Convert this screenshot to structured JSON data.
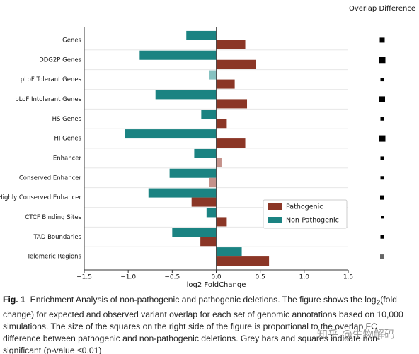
{
  "chart_data": {
    "type": "bar",
    "orientation": "horizontal",
    "x_label": "log2 FoldChange",
    "categories": [
      "Genes",
      "DDG2P Genes",
      "pLoF Tolerant Genes",
      "pLoF Intolerant Genes",
      "HS Genes",
      "HI Genes",
      "Enhancer",
      "Conserved Enhancer",
      "Highly Conserved Enhancer",
      "CTCF Binding Sites",
      "TAD Boundaries",
      "Telomeric Regions"
    ],
    "series": [
      {
        "name": "Non-Pathogenic",
        "color": "#1b8382",
        "values": [
          -0.34,
          -0.87,
          -0.08,
          -0.69,
          -0.17,
          -1.04,
          -0.25,
          -0.53,
          -0.77,
          -0.11,
          -0.5,
          0.29
        ],
        "point_colors": [
          "#1b8382",
          "#1b8382",
          "#86c2c1",
          "#1b8382",
          "#1b8382",
          "#1b8382",
          "#1b8382",
          "#1b8382",
          "#1b8382",
          "#1b8382",
          "#1b8382",
          "#1b8382"
        ]
      },
      {
        "name": "Pathogenic",
        "color": "#8b3626",
        "values": [
          0.33,
          0.45,
          0.21,
          0.35,
          0.12,
          0.33,
          0.06,
          -0.08,
          -0.28,
          0.12,
          -0.18,
          0.6
        ],
        "point_colors": [
          "#8b3626",
          "#8b3626",
          "#8b3626",
          "#8b3626",
          "#8b3626",
          "#8b3626",
          "#c4918a",
          "#c4918a",
          "#8b3626",
          "#8b3626",
          "#8b3626",
          "#8b3626"
        ]
      }
    ],
    "xlim": [
      -1.5,
      1.5
    ],
    "xticks": [
      {
        "value": -1.5,
        "label": "−1.5"
      },
      {
        "value": -1,
        "label": "−1.0"
      },
      {
        "value": -0.5,
        "label": "−0.5"
      },
      {
        "value": 0,
        "label": "0.0"
      },
      0.5,
      {
        "value": 1,
        "label": "1.0"
      },
      1.5
    ],
    "legend_order": [
      1,
      0
    ],
    "overlap_difference": {
      "title": "Overlap Difference",
      "values": [
        7,
        9,
        5,
        8,
        5,
        9,
        5,
        5,
        6,
        4,
        5,
        6
      ],
      "colors": [
        "#000000",
        "#000000",
        "#000000",
        "#000000",
        "#000000",
        "#000000",
        "#000000",
        "#000000",
        "#000000",
        "#000000",
        "#000000",
        "#666666"
      ]
    }
  },
  "caption": {
    "label": "Fig. 1",
    "text_before": "Enrichment Analysis of non-pathogenic and pathogenic deletions. The figure shows the log",
    "subscript": "2",
    "text_after": "(fold change) for expected and observed variant overlap for each set of genomic annotations based on 10,000 simulations. The size of the squares on the right side of the figure is proportional to the overlap FC difference between pathogenic and non-pathogenic deletions. Grey bars and squares indicate non-significant (p-value ≤0.01)"
  },
  "watermark": "知乎 @生物解码"
}
